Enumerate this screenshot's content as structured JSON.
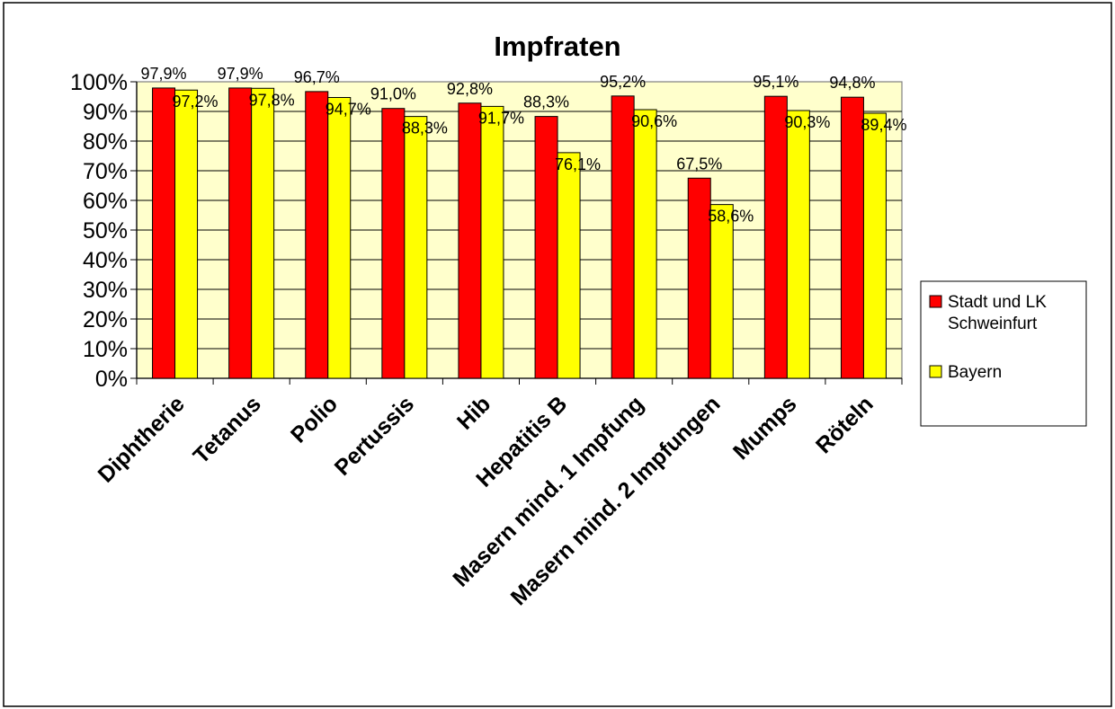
{
  "chart_data": {
    "type": "bar",
    "title": "Impfraten",
    "categories": [
      "Diphtherie",
      "Tetanus",
      "Polio",
      "Pertussis",
      "Hib",
      "Hepatitis B",
      "Masern mind. 1 Impfung",
      "Masern mind. 2 Impfungen",
      "Mumps",
      "Röteln"
    ],
    "series": [
      {
        "name": "Stadt und LK Schweinfurt",
        "color": "#ff0000",
        "values": [
          97.9,
          97.9,
          96.7,
          91.0,
          92.8,
          88.3,
          95.2,
          67.5,
          95.1,
          94.8
        ],
        "labels": [
          "97,9%",
          "97,9%",
          "96,7%",
          "91,0%",
          "92,8%",
          "88,3%",
          "95,2%",
          "67,5%",
          "95,1%",
          "94,8%"
        ]
      },
      {
        "name": "Bayern",
        "color": "#ffff00",
        "values": [
          97.2,
          97.8,
          94.7,
          88.3,
          91.7,
          76.1,
          90.6,
          58.6,
          90.3,
          89.4
        ],
        "labels": [
          "97,2%",
          "97,8%",
          "94,7%",
          "88,3%",
          "91,7%",
          "76,1%",
          "90,6%",
          "58,6%",
          "90,3%",
          "89,4%"
        ]
      }
    ],
    "yticks": [
      "0%",
      "10%",
      "20%",
      "30%",
      "40%",
      "50%",
      "60%",
      "70%",
      "80%",
      "90%",
      "100%"
    ],
    "ylim": [
      0,
      100
    ],
    "grid": true,
    "plot_background": "#ffffcc",
    "legend_position": "right"
  }
}
